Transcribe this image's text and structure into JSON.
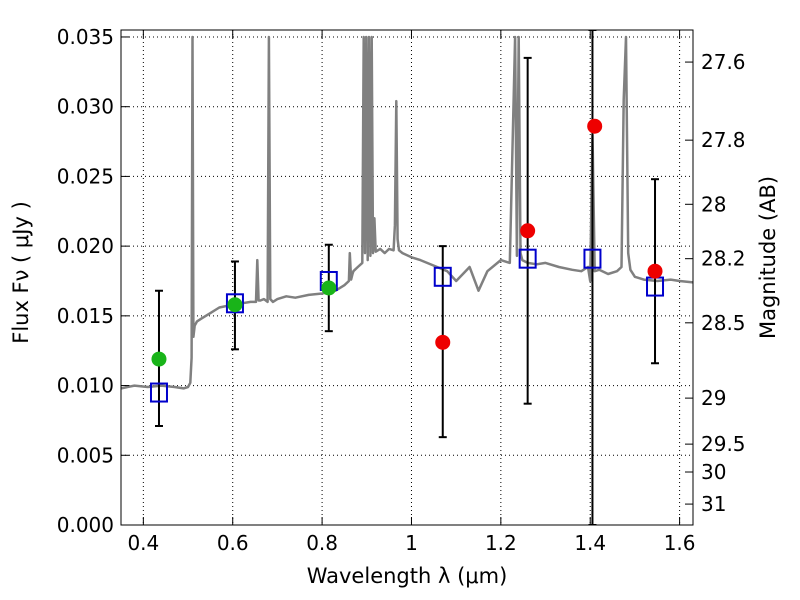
{
  "chart_data": {
    "type": "scatter",
    "xlabel": "Wavelength  λ (μm)",
    "ylabel": "Flux  Fν  ( μJy )",
    "ylabel_right": "Magnitude (AB)",
    "xlim": [
      0.35,
      1.63
    ],
    "ylim": [
      0.0,
      0.0355
    ],
    "x_ticks": [
      0.4,
      0.6,
      0.8,
      1.0,
      1.2,
      1.4,
      1.6
    ],
    "x_tick_labels": [
      "0.4",
      "0.6",
      "0.8",
      "1",
      "1.2",
      "1.4",
      "1.6"
    ],
    "y_ticks": [
      0.0,
      0.005,
      0.01,
      0.015,
      0.02,
      0.025,
      0.03,
      0.035
    ],
    "y_tick_labels": [
      "0.000",
      "0.005",
      "0.010",
      "0.015",
      "0.020",
      "0.025",
      "0.030",
      "0.035"
    ],
    "right_ticks": [
      {
        "label": "27.6",
        "flux": 0.0332
      },
      {
        "label": "27.8",
        "flux": 0.0276
      },
      {
        "label": "28",
        "flux": 0.023
      },
      {
        "label": "28.2",
        "flux": 0.0191
      },
      {
        "label": "28.5",
        "flux": 0.0145
      },
      {
        "label": "29",
        "flux": 0.0091
      },
      {
        "label": "29.5",
        "flux": 0.0058
      },
      {
        "label": "30",
        "flux": 0.0038
      },
      {
        "label": "31",
        "flux": 0.0015
      }
    ],
    "grid": true,
    "colors": {
      "template": "#808080",
      "model": "#0000cc",
      "detected": "#19b419",
      "undetected": "#ee0000",
      "errorbar": "#000000"
    },
    "template_spectrum": {
      "x": [
        0.35,
        0.38,
        0.41,
        0.44,
        0.47,
        0.49,
        0.5,
        0.505,
        0.508,
        0.51,
        0.512,
        0.515,
        0.52,
        0.53,
        0.54,
        0.55,
        0.57,
        0.6,
        0.62,
        0.64,
        0.652,
        0.655,
        0.658,
        0.662,
        0.67,
        0.678,
        0.681,
        0.684,
        0.687,
        0.69,
        0.7,
        0.72,
        0.74,
        0.77,
        0.8,
        0.83,
        0.85,
        0.86,
        0.862,
        0.865,
        0.868,
        0.87,
        0.88,
        0.89,
        0.893,
        0.896,
        0.899,
        0.902,
        0.905,
        0.908,
        0.911,
        0.914,
        0.917,
        0.92,
        0.93,
        0.94,
        0.95,
        0.96,
        0.963,
        0.966,
        0.969,
        0.972,
        0.98,
        1.0,
        1.02,
        1.05,
        1.08,
        1.1,
        1.13,
        1.15,
        1.17,
        1.2,
        1.22,
        1.232,
        1.236,
        1.24,
        1.244,
        1.248,
        1.26,
        1.28,
        1.3,
        1.33,
        1.36,
        1.38,
        1.395,
        1.4,
        1.405,
        1.41,
        1.42,
        1.44,
        1.46,
        1.47,
        1.475,
        1.48,
        1.485,
        1.49,
        1.5,
        1.52,
        1.55,
        1.58,
        1.6,
        1.63
      ],
      "y": [
        0.0098,
        0.01,
        0.0099,
        0.01,
        0.0099,
        0.0098,
        0.0099,
        0.0102,
        0.012,
        0.035,
        0.0135,
        0.0143,
        0.0146,
        0.0148,
        0.015,
        0.0152,
        0.0156,
        0.0158,
        0.0159,
        0.016,
        0.016,
        0.019,
        0.0161,
        0.0161,
        0.0162,
        0.016,
        0.035,
        0.0162,
        0.0161,
        0.016,
        0.0162,
        0.0164,
        0.0163,
        0.0165,
        0.0166,
        0.0168,
        0.0172,
        0.0175,
        0.0195,
        0.0176,
        0.018,
        0.0182,
        0.0185,
        0.0188,
        0.035,
        0.0195,
        0.035,
        0.019,
        0.035,
        0.0193,
        0.035,
        0.0195,
        0.022,
        0.0196,
        0.0198,
        0.0195,
        0.0198,
        0.0197,
        0.0215,
        0.0304,
        0.0205,
        0.0197,
        0.0195,
        0.0192,
        0.019,
        0.0186,
        0.0182,
        0.0175,
        0.0185,
        0.0168,
        0.0182,
        0.019,
        0.0188,
        0.035,
        0.0193,
        0.035,
        0.0195,
        0.019,
        0.0188,
        0.0187,
        0.0188,
        0.0185,
        0.0183,
        0.0182,
        0.0185,
        0.0175,
        0.028,
        0.0182,
        0.0183,
        0.018,
        0.0182,
        0.0185,
        0.0305,
        0.035,
        0.0195,
        0.0183,
        0.0178,
        0.0176,
        0.0175,
        0.0176,
        0.0175,
        0.0174
      ]
    },
    "model_fluxes": {
      "name": "",
      "x": [
        0.435,
        0.605,
        0.815,
        1.07,
        1.26,
        1.405,
        1.545
      ],
      "y": [
        0.0095,
        0.0159,
        0.0175,
        0.0178,
        0.0191,
        0.0191,
        0.0171
      ]
    },
    "detected": {
      "x": [
        0.435,
        0.605,
        0.815
      ],
      "y": [
        0.0119,
        0.0158,
        0.017
      ]
    },
    "undetected": {
      "x": [
        1.07,
        1.26,
        1.41,
        1.545
      ],
      "y": [
        0.0131,
        0.0211,
        0.0286,
        0.0182
      ]
    },
    "errorbars": [
      {
        "x": 0.435,
        "low": 0.0071,
        "high": 0.0168
      },
      {
        "x": 0.605,
        "low": 0.0126,
        "high": 0.0189
      },
      {
        "x": 0.815,
        "low": 0.0139,
        "high": 0.0201
      },
      {
        "x": 1.07,
        "low": 0.0063,
        "high": 0.02
      },
      {
        "x": 1.26,
        "low": 0.0087,
        "high": 0.0335
      },
      {
        "x": 1.405,
        "low": 0.0,
        "high": 0.0355
      },
      {
        "x": 1.545,
        "low": 0.0116,
        "high": 0.0248
      }
    ]
  }
}
